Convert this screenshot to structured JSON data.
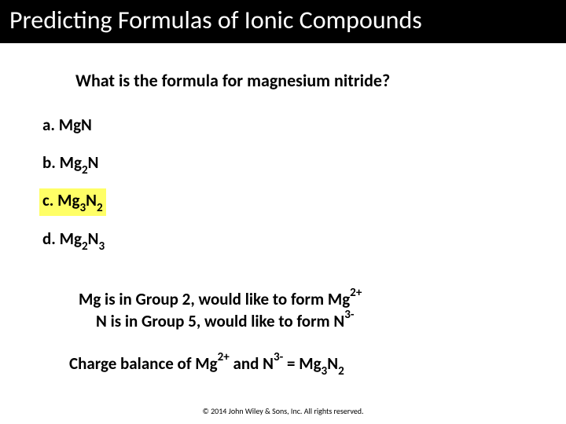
{
  "title": "Predicting Formulas of Ionic Compounds",
  "question": "What is the formula for magnesium nitride?",
  "options": {
    "a": {
      "letter": "a.",
      "pre": "Mg",
      "sub1": "",
      "mid": "N",
      "sub2": ""
    },
    "b": {
      "letter": "b.",
      "pre": "Mg",
      "sub1": "2",
      "mid": "N",
      "sub2": ""
    },
    "c": {
      "letter": "c.",
      "pre": "Mg",
      "sub1": "3",
      "mid": "N",
      "sub2": "2"
    },
    "d": {
      "letter": "d.",
      "pre": "Mg",
      "sub1": "2",
      "mid": "N",
      "sub2": "3"
    }
  },
  "highlighted_option": "c",
  "explain": {
    "line1_a": "Mg is in Group 2, would like to form Mg",
    "line1_sup": "2+",
    "line2_a": "N is in Group 5, would like to form N",
    "line2_sup": "3-"
  },
  "balance": {
    "a": "Charge balance of Mg",
    "sup1": "2+",
    "b": " and N",
    "sup2": "3-",
    "c": "  =  Mg",
    "sub1": "3",
    "d": "N",
    "sub2": "2"
  },
  "copyright": "© 2014 John Wiley & Sons, Inc. All rights reserved.",
  "colors": {
    "title_bg": "#000000",
    "title_fg": "#ffffff",
    "highlight": "#ffff66",
    "text": "#000000",
    "page_bg": "#ffffff"
  }
}
